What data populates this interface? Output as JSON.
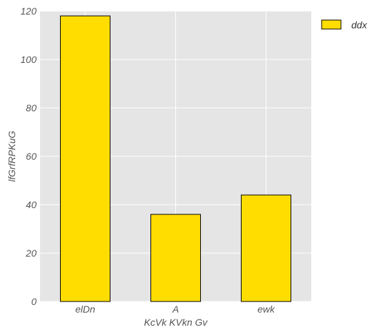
{
  "chart_data": {
    "type": "bar",
    "categories": [
      "elDn",
      "A",
      "ewk"
    ],
    "series": [
      {
        "name": "ddx",
        "values": [
          118,
          36,
          44
        ]
      }
    ],
    "xlabel": "KcVk KVkn Gv",
    "ylabel": "lfGrfRPKuG",
    "ylim": [
      0,
      120
    ],
    "yticks": [
      "0",
      "20",
      "40",
      "60",
      "80",
      "100",
      "120"
    ],
    "grid": true,
    "legend_position": "top-right",
    "colors": {
      "bar": "#FFDD00",
      "bar_edge": "#000000",
      "plot_background": "#E5E5E5",
      "grid": "#FFFFFF"
    }
  }
}
